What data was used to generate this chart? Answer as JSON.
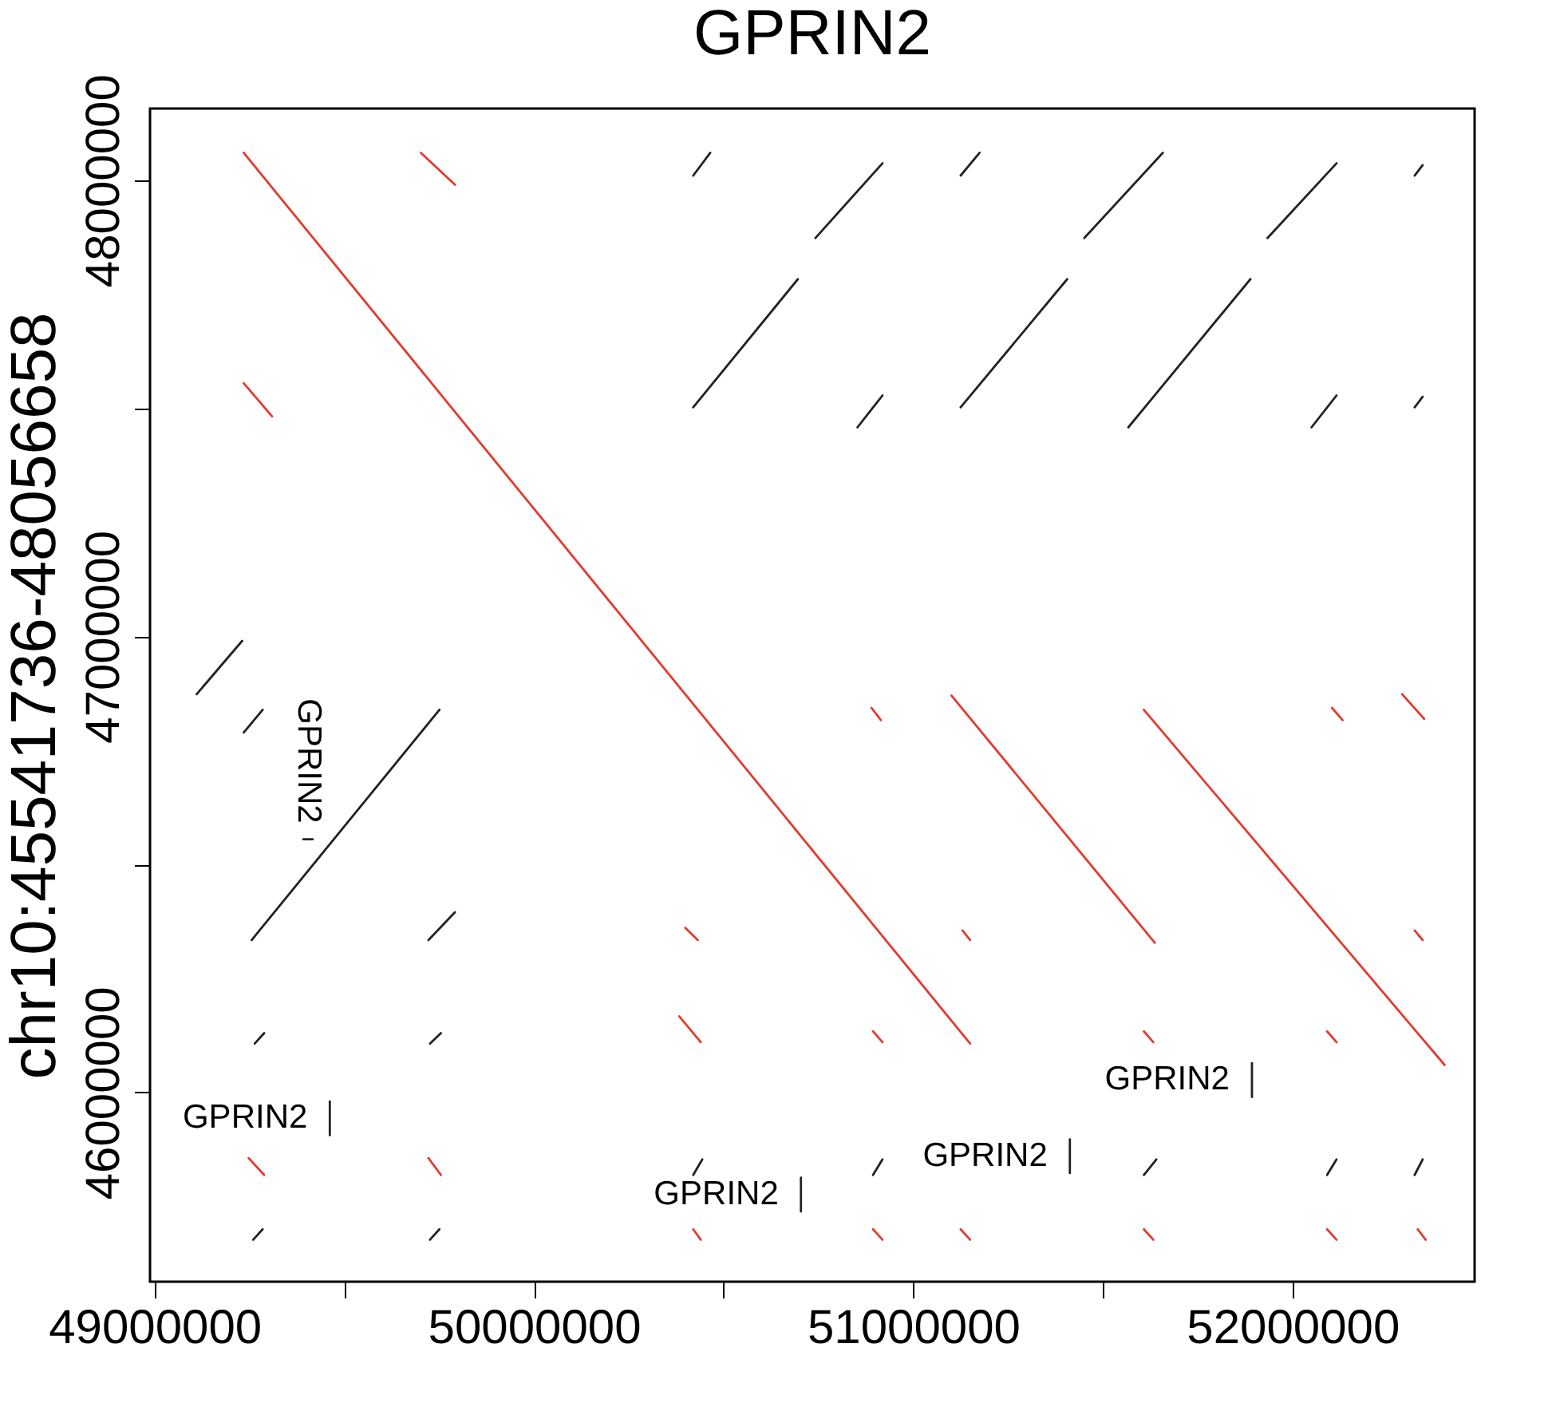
{
  "chart_data": {
    "type": "line",
    "title": "GPRIN2",
    "ylabel": "chr10:45541736-48056658",
    "xlim": [
      48988000,
      52480000
    ],
    "ylim": [
      45585000,
      48157000
    ],
    "xticks": [
      49000000,
      {
        "value": 49500000,
        "label": null
      },
      50000000,
      {
        "value": 50500000,
        "label": null
      },
      51000000,
      {
        "value": 51500000,
        "label": null
      },
      52000000
    ],
    "yticks": [
      46000000,
      {
        "value": 46500000,
        "label": null
      },
      47000000,
      {
        "value": 47500000,
        "label": null
      },
      48000000
    ],
    "grid": false,
    "legend": false,
    "annotations": [
      {
        "text": "GPRIN2",
        "x": 49404000,
        "y": 46555000
      },
      {
        "text": "GPRIN2",
        "x": 49462000,
        "y": 45943000
      },
      {
        "text": "GPRIN2",
        "x": 50704000,
        "y": 45776000
      },
      {
        "text": "GPRIN2",
        "x": 51413000,
        "y": 45860000
      },
      {
        "text": "GPRIN2",
        "x": 51893000,
        "y": 46027000
      }
    ],
    "series": [
      {
        "color": "#e53a2e",
        "x": [
          49235000,
          51150000
        ],
        "values": [
          48060000,
          46107000
        ]
      },
      {
        "color": "#e53a2e",
        "x": [
          49702000,
          49792000
        ],
        "values": [
          48060000,
          47990000
        ]
      },
      {
        "color": "#e53a2e",
        "x": [
          49235000,
          49310000
        ],
        "values": [
          47555000,
          47482000
        ]
      },
      {
        "color": "#e53a2e",
        "x": [
          51101000,
          51637000
        ],
        "values": [
          46870000,
          46328000
        ]
      },
      {
        "color": "#e53a2e",
        "x": [
          51608000,
          52401000
        ],
        "values": [
          46839000,
          46060000
        ]
      },
      {
        "color": "#e53a2e",
        "x": [
          52289000,
          52347000
        ],
        "values": [
          46873000,
          46819000
        ]
      },
      {
        "color": "#e53a2e",
        "x": [
          50890000,
          50915000
        ],
        "values": [
          46843000,
          46816000
        ]
      },
      {
        "color": "#e53a2e",
        "x": [
          52104000,
          52132000
        ],
        "values": [
          46843000,
          46816000
        ]
      },
      {
        "color": "#e53a2e",
        "x": [
          50399000,
          50432000
        ],
        "values": [
          46361000,
          46334000
        ]
      },
      {
        "color": "#e53a2e",
        "x": [
          51130000,
          51150000
        ],
        "values": [
          46355000,
          46334000
        ]
      },
      {
        "color": "#e53a2e",
        "x": [
          52322000,
          52343000
        ],
        "values": [
          46355000,
          46334000
        ]
      },
      {
        "color": "#e53a2e",
        "x": [
          50383000,
          50440000
        ],
        "values": [
          46167000,
          46110000
        ]
      },
      {
        "color": "#e53a2e",
        "x": [
          50894000,
          50919000
        ],
        "values": [
          46134000,
          46110000
        ]
      },
      {
        "color": "#e53a2e",
        "x": [
          51608000,
          51633000
        ],
        "values": [
          46134000,
          46110000
        ]
      },
      {
        "color": "#e53a2e",
        "x": [
          52091000,
          52116000
        ],
        "values": [
          46134000,
          46110000
        ]
      },
      {
        "color": "#e53a2e",
        "x": [
          49248000,
          49289000
        ],
        "values": [
          45856000,
          45819000
        ]
      },
      {
        "color": "#e53a2e",
        "x": [
          49722000,
          49755000
        ],
        "values": [
          45856000,
          45819000
        ]
      },
      {
        "color": "#e53a2e",
        "x": [
          50420000,
          50440000
        ],
        "values": [
          45700000,
          45677000
        ]
      },
      {
        "color": "#e53a2e",
        "x": [
          50894000,
          50919000
        ],
        "values": [
          45700000,
          45677000
        ]
      },
      {
        "color": "#e53a2e",
        "x": [
          51125000,
          51150000
        ],
        "values": [
          45700000,
          45677000
        ]
      },
      {
        "color": "#e53a2e",
        "x": [
          51608000,
          51633000
        ],
        "values": [
          45700000,
          45677000
        ]
      },
      {
        "color": "#e53a2e",
        "x": [
          52091000,
          52116000
        ],
        "values": [
          45700000,
          45677000
        ]
      },
      {
        "color": "#e53a2e",
        "x": [
          52330000,
          52351000
        ],
        "values": [
          45700000,
          45677000
        ]
      },
      {
        "color": "#222222",
        "x": [
          49256000,
          49751000
        ],
        "values": [
          46334000,
          46839000
        ]
      },
      {
        "color": "#222222",
        "x": [
          49111000,
          49231000
        ],
        "values": [
          46873000,
          46990000
        ]
      },
      {
        "color": "#222222",
        "x": [
          49235000,
          49285000
        ],
        "values": [
          46789000,
          46839000
        ]
      },
      {
        "color": "#222222",
        "x": [
          49722000,
          49792000
        ],
        "values": [
          46334000,
          46395000
        ]
      },
      {
        "color": "#222222",
        "x": [
          49264000,
          49289000
        ],
        "values": [
          46107000,
          46130000
        ]
      },
      {
        "color": "#222222",
        "x": [
          49726000,
          49755000
        ],
        "values": [
          46107000,
          46130000
        ]
      },
      {
        "color": "#222222",
        "x": [
          49260000,
          49285000
        ],
        "values": [
          45677000,
          45700000
        ]
      },
      {
        "color": "#222222",
        "x": [
          49726000,
          49751000
        ],
        "values": [
          45677000,
          45700000
        ]
      },
      {
        "color": "#222222",
        "x": [
          50420000,
          50444000
        ],
        "values": [
          45819000,
          45853000
        ]
      },
      {
        "color": "#222222",
        "x": [
          50894000,
          50919000
        ],
        "values": [
          45819000,
          45853000
        ]
      },
      {
        "color": "#222222",
        "x": [
          51608000,
          51641000
        ],
        "values": [
          45819000,
          45853000
        ]
      },
      {
        "color": "#222222",
        "x": [
          52091000,
          52116000
        ],
        "values": [
          45819000,
          45853000
        ]
      },
      {
        "color": "#222222",
        "x": [
          52322000,
          52343000
        ],
        "values": [
          45819000,
          45853000
        ]
      },
      {
        "color": "#222222",
        "x": [
          50742000,
          50919000
        ],
        "values": [
          47873000,
          48037000
        ]
      },
      {
        "color": "#222222",
        "x": [
          51125000,
          51175000
        ],
        "values": [
          48010000,
          48060000
        ]
      },
      {
        "color": "#222222",
        "x": [
          51451000,
          51658000
        ],
        "values": [
          47873000,
          48060000
        ]
      },
      {
        "color": "#222222",
        "x": [
          51934000,
          52116000
        ],
        "values": [
          47873000,
          48037000
        ]
      },
      {
        "color": "#222222",
        "x": [
          52322000,
          52343000
        ],
        "values": [
          48010000,
          48033000
        ]
      },
      {
        "color": "#222222",
        "x": [
          50853000,
          50919000
        ],
        "values": [
          47458000,
          47528000
        ]
      },
      {
        "color": "#222222",
        "x": [
          51125000,
          51406000
        ],
        "values": [
          47502000,
          47783000
        ]
      },
      {
        "color": "#222222",
        "x": [
          51567000,
          51889000
        ],
        "values": [
          47458000,
          47783000
        ]
      },
      {
        "color": "#222222",
        "x": [
          52050000,
          52116000
        ],
        "values": [
          47458000,
          47528000
        ]
      },
      {
        "color": "#222222",
        "x": [
          52322000,
          52343000
        ],
        "values": [
          47502000,
          47525000
        ]
      },
      {
        "color": "#222222",
        "x": [
          50420000,
          50465000
        ],
        "values": [
          48010000,
          48060000
        ]
      },
      {
        "color": "#222222",
        "x": [
          50420000,
          50696000
        ],
        "values": [
          47502000,
          47783000
        ]
      },
      {
        "color": "#222222",
        "x": [
          49392000,
          49417000
        ],
        "values": [
          46555000,
          46555000
        ]
      },
      {
        "color": "#222222",
        "x": [
          49462000,
          49462000
        ],
        "values": [
          45906000,
          45980000
        ]
      },
      {
        "color": "#222222",
        "x": [
          50704000,
          50704000
        ],
        "values": [
          45739000,
          45813000
        ]
      },
      {
        "color": "#222222",
        "x": [
          51413000,
          51413000
        ],
        "values": [
          45823000,
          45897000
        ]
      },
      {
        "color": "#222222",
        "x": [
          51893000,
          51893000
        ],
        "values": [
          45990000,
          46064000
        ]
      }
    ]
  }
}
